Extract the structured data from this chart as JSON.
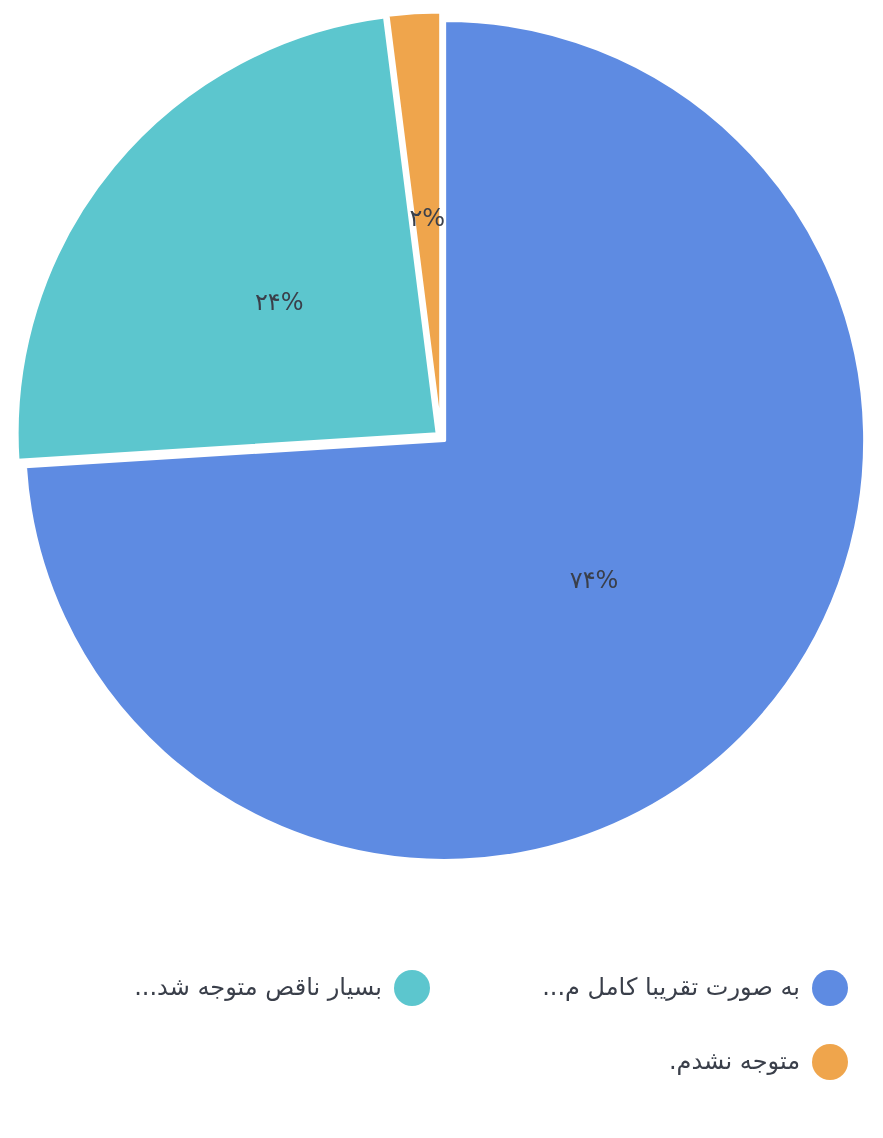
{
  "chart_data": {
    "type": "pie",
    "categories": [
      "به صورت تقریبا کامل م...",
      "بسیار ناقص متوجه شد...",
      "متوجه نشدم."
    ],
    "values": [
      74,
      24,
      2
    ],
    "colors": [
      "#5e8be2",
      "#5cc6ce",
      "#efa54c"
    ],
    "value_labels": [
      "۷۴%",
      "۲۴%",
      "۲%"
    ],
    "legend": "bottom"
  }
}
